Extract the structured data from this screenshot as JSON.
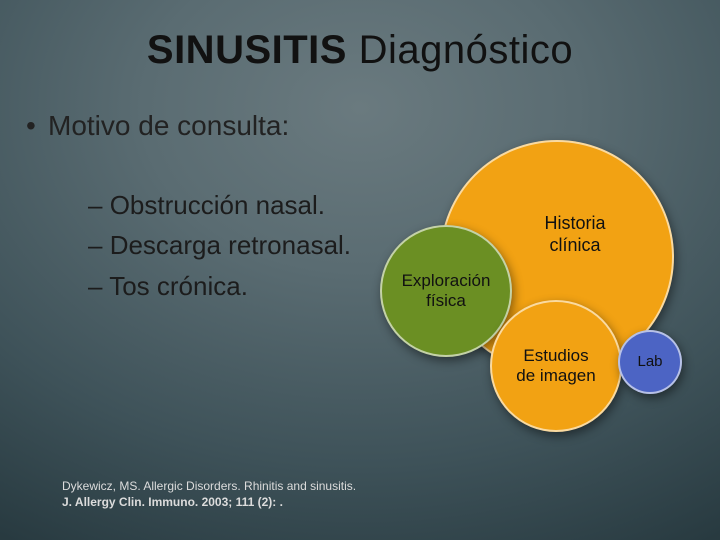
{
  "title": {
    "bold": "SINUSITIS",
    "regular": " Diagnóstico"
  },
  "mainBullet": "Motivo de consulta:",
  "subBullets": [
    "Obstrucción nasal.",
    "Descarga retronasal.",
    "Tos crónica."
  ],
  "reference": {
    "line1": "Dykewicz, MS. Allergic Disorders. Rhinitis and sinusitis.",
    "line2": "J. Allergy Clin. Immuno. 2003; 111 (2): ."
  },
  "circles": {
    "historia": {
      "label": "Historia\nclínica",
      "fill": "#f2a213"
    },
    "exploracion": {
      "label": "Exploración\nfísica",
      "fill": "#6b8f23"
    },
    "estudios": {
      "label": "Estudios\nde imagen",
      "fill": "#f2a213"
    },
    "lab": {
      "label": "Lab",
      "fill": "#4c64c4"
    }
  },
  "styling": {
    "title_fontsize": 40,
    "bullet_fontsize": 28,
    "sub_fontsize": 26,
    "circle_border_color": "#ffffffaa",
    "text_dark": "#111111",
    "text_light": "#e8e8e8",
    "bg_gradient": [
      "#6a7a7f",
      "#3e5259",
      "#18272c"
    ]
  }
}
